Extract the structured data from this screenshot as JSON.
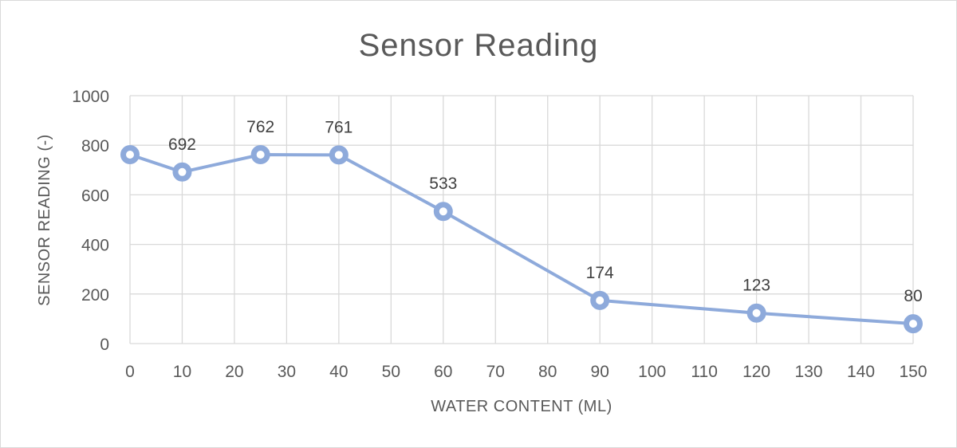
{
  "chart_data": {
    "type": "scatter",
    "title": "Sensor Reading",
    "xlabel": "WATER CONTENT (ML)",
    "ylabel": "SENSOR READING (-)",
    "xlim": [
      0,
      150
    ],
    "ylim": [
      0,
      1000
    ],
    "xticks": [
      0,
      10,
      20,
      30,
      40,
      50,
      60,
      70,
      80,
      90,
      100,
      110,
      120,
      130,
      140,
      150
    ],
    "yticks": [
      0,
      200,
      400,
      600,
      800,
      1000
    ],
    "grid": true,
    "legend": "none",
    "color": "#8eaadb",
    "series": [
      {
        "x": [
          0,
          10,
          25,
          40,
          60,
          90,
          120,
          150
        ],
        "y": [
          762,
          692,
          762,
          761,
          533,
          174,
          123,
          80
        ],
        "data_labels": [
          "",
          "692",
          "762",
          "761",
          "533",
          "174",
          "123",
          "80"
        ]
      }
    ]
  }
}
